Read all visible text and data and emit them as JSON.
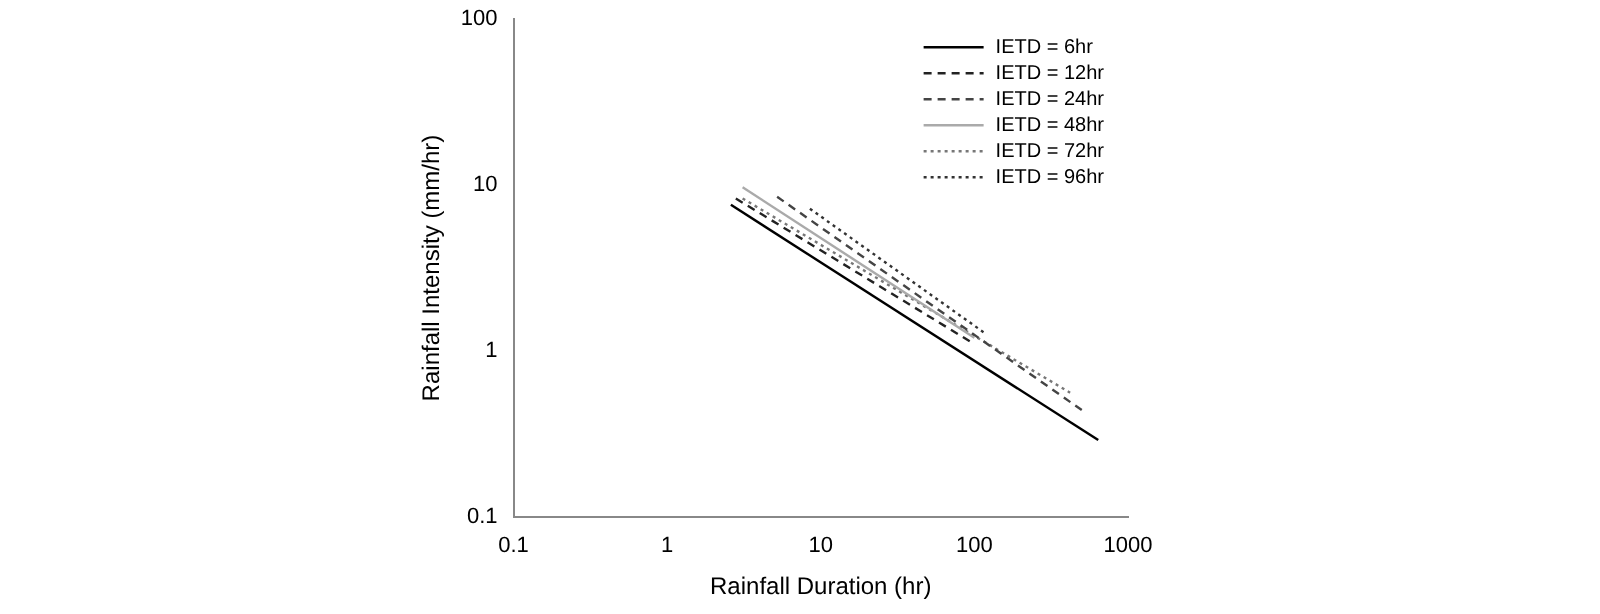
{
  "chart_data": {
    "type": "line",
    "xlabel": "Rainfall Duration (hr)",
    "ylabel": "Rainfall Intensity (mm/hr)",
    "log": "xy",
    "xlim": [
      0.1,
      1000
    ],
    "ylim": [
      0.1,
      100
    ],
    "xticks": [
      0.1,
      1,
      10,
      100,
      1000
    ],
    "yticks": [
      0.1,
      1,
      10,
      100
    ],
    "grid": false,
    "legend": "top right",
    "marker": "none",
    "series": [
      {
        "name": "IETD = 6hr",
        "color": "#000000",
        "line_style": "solid",
        "x": [
          2.6,
          640
        ],
        "values": [
          7.6,
          0.29
        ]
      },
      {
        "name": "IETD = 12hr",
        "color": "#222222",
        "line_style": "dashed",
        "x": [
          2.8,
          100
        ],
        "values": [
          8.3,
          1.1
        ]
      },
      {
        "name": "IETD = 24hr",
        "color": "#444444",
        "line_style": "dashed",
        "x": [
          5.2,
          500
        ],
        "values": [
          8.5,
          0.44
        ]
      },
      {
        "name": "IETD = 48hr",
        "color": "#aaaaaa",
        "line_style": "solid",
        "x": [
          3.1,
          100
        ],
        "values": [
          9.7,
          1.2
        ]
      },
      {
        "name": "IETD = 72hr",
        "color": "#777777",
        "line_style": "dotted",
        "x": [
          3.1,
          420
        ],
        "values": [
          8.3,
          0.56
        ]
      },
      {
        "name": "IETD = 96hr",
        "color": "#333333",
        "line_style": "dotted",
        "x": [
          8.5,
          117
        ],
        "values": [
          7.2,
          1.28
        ]
      }
    ]
  }
}
